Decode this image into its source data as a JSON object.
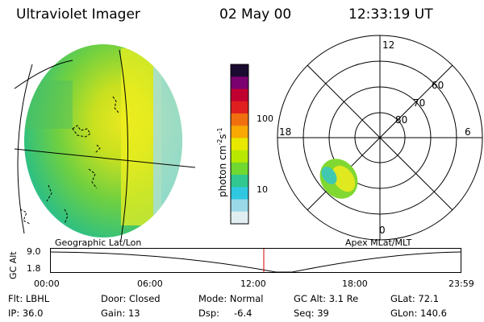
{
  "header": {
    "title": "Ultraviolet Imager",
    "date": "02 May 00",
    "time": "12:33:19 UT"
  },
  "colorbar": {
    "unit_label": "photon cm",
    "unit_exp1": "-2",
    "unit_mid": "s",
    "unit_exp2": "-1",
    "ticks": [
      "100",
      "10"
    ],
    "colors": [
      "#1a0a30",
      "#7b0070",
      "#c00030",
      "#e02020",
      "#f07010",
      "#f8a800",
      "#e8e800",
      "#b8e800",
      "#70d830",
      "#30c890",
      "#30c8e0",
      "#9ad8e8",
      "#e0eef2"
    ]
  },
  "polar_plot": {
    "mlt_labels": {
      "top": "12",
      "left": "18",
      "right": "6",
      "bottom": "0"
    },
    "lat_labels": [
      "60",
      "70",
      "80"
    ]
  },
  "panel_labels": {
    "left": "Geographic Lat/Lon",
    "right": "Apex MLat/MLT"
  },
  "altitude_plot": {
    "axis_label": "GC Alt",
    "y_ticks": [
      "9.0",
      "1.8"
    ],
    "x_ticks": [
      "00:00",
      "06:00",
      "12:00",
      "18:00",
      "23:59"
    ],
    "marker_color": "#d00000"
  },
  "info": {
    "flt": "Flt: LBHL",
    "ip": "IP: 36.0",
    "door": "Door: Closed",
    "gain": "Gain: 13",
    "mode": "Mode: Normal",
    "dsp_label": "Dsp:",
    "dsp_value": "-6.4",
    "gc_alt": "GC Alt: 3.1 Re",
    "seq": "Seq: 39",
    "glat": "GLat: 72.1",
    "glon": "GLon: 140.6"
  }
}
